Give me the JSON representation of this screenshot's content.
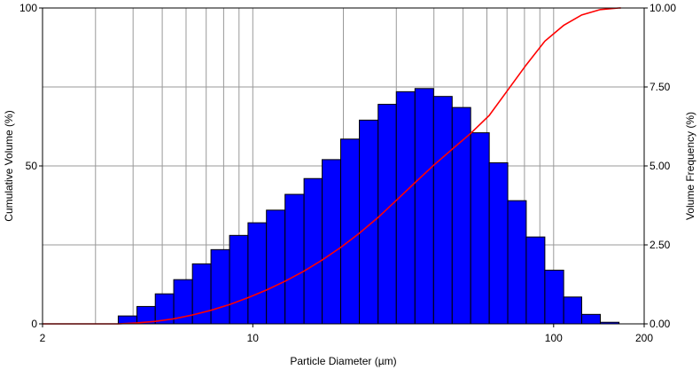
{
  "chart_data": {
    "type": "bar",
    "xlabel": "Particle Diameter (µm)",
    "ylabel_left": "Cumulative Volume (%)",
    "ylabel_right": "Volume Frequency (%)",
    "x_scale": "log",
    "xlim": [
      2,
      200
    ],
    "ylim_left": [
      0,
      100
    ],
    "ylim_right": [
      0,
      10
    ],
    "x_ticks": [
      "2",
      "10",
      "100",
      "200"
    ],
    "y_ticks_left": [
      "0",
      "50",
      "100"
    ],
    "y_ticks_right": [
      "0.00",
      "2.50",
      "5.00",
      "7.50",
      "10.00"
    ],
    "grid": true,
    "colors": {
      "bars": "#0000ff",
      "curve": "#ff0000",
      "grid": "#999999"
    },
    "series": [
      {
        "kind": "histogram",
        "axis": "right",
        "bin_edges": [
          3.57,
          4.12,
          4.74,
          5.46,
          6.3,
          7.26,
          8.37,
          9.64,
          11.1,
          12.8,
          14.8,
          17.0,
          19.6,
          22.6,
          26.1,
          30.0,
          34.6,
          39.9,
          46.0,
          53.0,
          61.1,
          70.4,
          81.1,
          93.5,
          108,
          124,
          143,
          165
        ],
        "values": [
          0.25,
          0.55,
          0.95,
          1.4,
          1.9,
          2.35,
          2.8,
          3.2,
          3.6,
          4.1,
          4.6,
          5.2,
          5.85,
          6.45,
          6.95,
          7.35,
          7.45,
          7.2,
          6.85,
          6.05,
          5.1,
          3.9,
          2.75,
          1.7,
          0.85,
          0.3,
          0.05
        ]
      },
      {
        "kind": "line",
        "axis": "left",
        "x": [
          2,
          3.57,
          4.12,
          4.74,
          5.46,
          6.3,
          7.26,
          8.37,
          9.64,
          11.1,
          12.8,
          14.8,
          17.0,
          19.6,
          22.6,
          26.1,
          30.0,
          34.6,
          39.9,
          46.0,
          53.0,
          61.1,
          70.4,
          81.1,
          93.5,
          108,
          124,
          143,
          165
        ],
        "y": [
          0,
          0,
          0.3,
          0.8,
          1.6,
          2.8,
          4.3,
          6.1,
          8.3,
          10.7,
          13.5,
          16.7,
          20.2,
          24.2,
          28.7,
          33.7,
          39.1,
          44.7,
          50.2,
          55.3,
          60.3,
          66.0,
          74.0,
          82.0,
          89.5,
          94.5,
          97.8,
          99.5,
          100
        ]
      }
    ]
  }
}
